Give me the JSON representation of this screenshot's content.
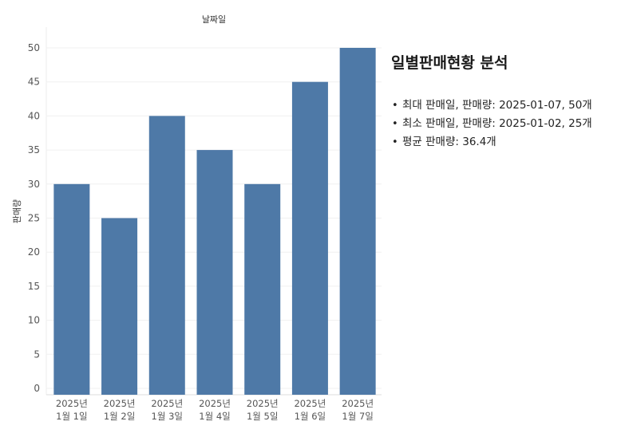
{
  "chart_data": {
    "type": "bar",
    "title": "날짜일",
    "xlabel": "날짜일",
    "ylabel": "판매량",
    "ylim": [
      0,
      52
    ],
    "yticks": [
      0,
      5,
      10,
      15,
      20,
      25,
      30,
      35,
      40,
      45,
      50
    ],
    "categories": [
      [
        "2025년",
        "1월 1일"
      ],
      [
        "2025년",
        "1월 2일"
      ],
      [
        "2025년",
        "1월 3일"
      ],
      [
        "2025년",
        "1월 4일"
      ],
      [
        "2025년",
        "1월 5일"
      ],
      [
        "2025년",
        "1월 6일"
      ],
      [
        "2025년",
        "1월 7일"
      ]
    ],
    "values": [
      30,
      25,
      40,
      35,
      30,
      45,
      50
    ],
    "bar_color": "#4e79a7",
    "grid": true
  },
  "analysis": {
    "title": "일별판매현황 분석",
    "items": [
      "최대 판매일, 판매량: 2025-01-07, 50개",
      "최소 판매일, 판매량: 2025-01-02, 25개",
      "평균 판매량: 36.4개"
    ]
  }
}
